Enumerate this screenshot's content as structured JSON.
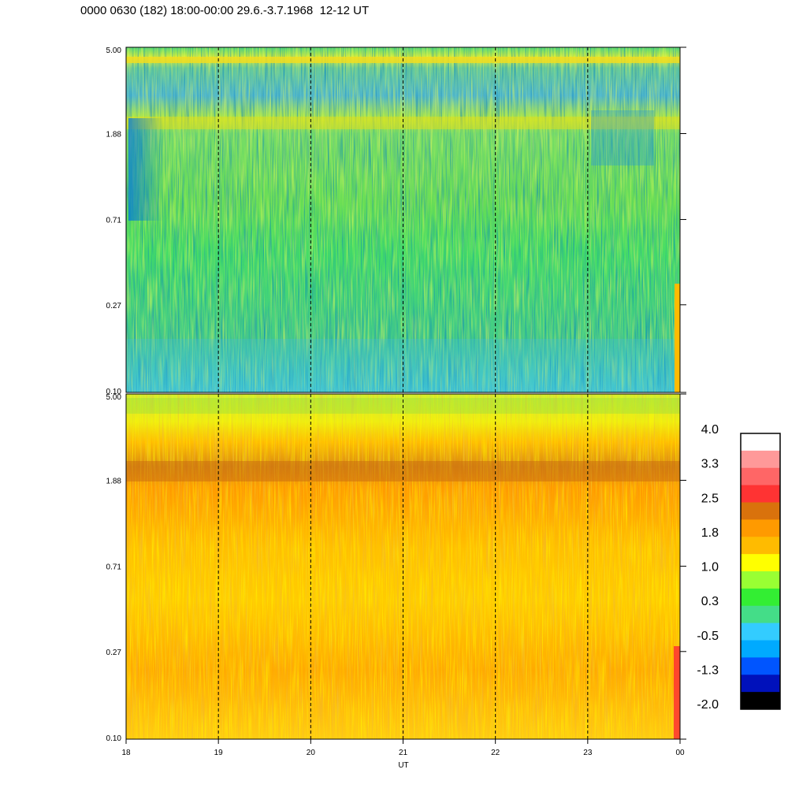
{
  "title": "0000 0630 (182) 18:00-00:00 29.6.-3.7.1968  12-12 UT",
  "chart_data": {
    "type": "heatmap",
    "xlabel": "UT",
    "x_ticks": [
      "18",
      "19",
      "20",
      "21",
      "22",
      "23",
      "00"
    ],
    "x_range_hours": [
      18,
      24
    ],
    "dashed_gridlines_x": [
      19,
      20,
      21,
      22,
      23
    ],
    "y_scale": "log",
    "y_range": [
      0.1,
      5.0
    ],
    "panels": [
      {
        "name": "upper",
        "y_ticks": [
          "5.00",
          "1.88",
          "0.71",
          "0.27",
          "0.10"
        ],
        "dominant_range": [
          -0.5,
          1.0
        ],
        "features": [
          {
            "band_y": 4.3,
            "value": 1.0
          },
          {
            "band_y": 2.1,
            "value": 0.9
          },
          {
            "region_x": [
              18.1,
              18.4
            ],
            "region_y": [
              1.0,
              3.5
            ],
            "value": -1.0
          },
          {
            "region_x": [
              23.1,
              23.5
            ],
            "region_y": [
              1.3,
              3.5
            ],
            "value": -0.8
          },
          {
            "region_x": [
              18.0,
              24.0
            ],
            "region_y": [
              0.1,
              0.2
            ],
            "value": -0.3
          }
        ]
      },
      {
        "name": "lower",
        "y_ticks": [
          "5.00",
          "1.88",
          "0.71",
          "0.27",
          "0.10"
        ],
        "dominant_range": [
          1.0,
          2.5
        ],
        "features": [
          {
            "band_y": 2.1,
            "value": 2.3
          },
          {
            "region_x": [
              18.0,
              24.0
            ],
            "region_y": [
              3.5,
              5.0
            ],
            "value": 0.5
          },
          {
            "region_x": [
              18.0,
              24.0
            ],
            "region_y": [
              0.1,
              1.5
            ],
            "value": 1.6
          }
        ]
      }
    ],
    "colorbar": {
      "labels": [
        "4.0",
        "3.3",
        "2.5",
        "1.8",
        "1.0",
        "0.3",
        "-0.5",
        "-1.3",
        "-2.0"
      ],
      "colors_top_to_bottom": [
        "#ffffff",
        "#ff9999",
        "#ff6666",
        "#ff3333",
        "#d9720c",
        "#ff9a00",
        "#ffbb00",
        "#ffff00",
        "#99ff33",
        "#33ee33",
        "#44dd88",
        "#33ccff",
        "#00aaff",
        "#0055ff",
        "#0011bb",
        "#000000"
      ]
    }
  }
}
